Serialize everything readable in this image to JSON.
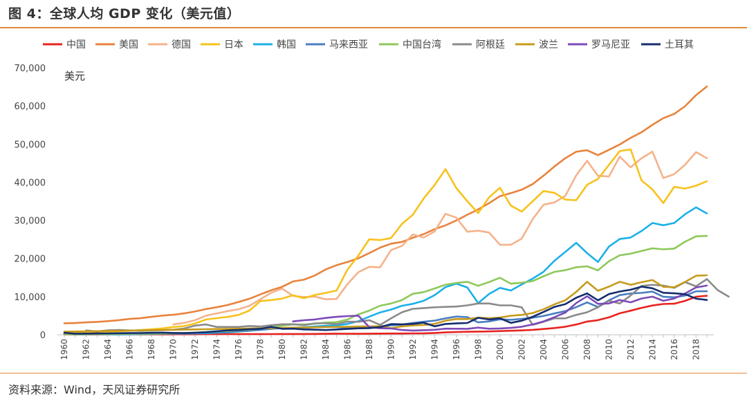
{
  "figure": {
    "title": "图 4：全球人均 GDP 变化（美元值）",
    "source": "资料来源：Wind，天风证券研究所"
  },
  "colors": {
    "accent_rule": "#e08a3c"
  },
  "chart_data": {
    "type": "line",
    "unit_label": "美元",
    "ylim": [
      0,
      70000
    ],
    "yticks": [
      0,
      10000,
      20000,
      30000,
      40000,
      50000,
      60000,
      70000
    ],
    "ytick_labels": [
      "0",
      "10,000",
      "20,000",
      "30,000",
      "40,000",
      "50,000",
      "60,000",
      "70,000"
    ],
    "xlim": [
      1960,
      2019
    ],
    "xticks": [
      1960,
      1962,
      1964,
      1966,
      1968,
      1970,
      1972,
      1974,
      1976,
      1978,
      1980,
      1982,
      1984,
      1986,
      1988,
      1990,
      1992,
      1994,
      1996,
      1998,
      2000,
      2002,
      2004,
      2006,
      2008,
      2010,
      2012,
      2014,
      2016,
      2018
    ],
    "legend_position": "top",
    "grid": false,
    "series": [
      {
        "name": "中国",
        "color": "#e8231f",
        "start": 1960,
        "values": [
          90,
          76,
          70,
          74,
          85,
          98,
          104,
          96,
          91,
          90,
          113,
          119,
          132,
          157,
          160,
          178,
          165,
          185,
          156,
          184,
          195,
          197,
          203,
          225,
          250,
          294,
          281,
          252,
          284,
          308,
          318,
          333,
          366,
          377,
          473,
          610,
          709,
          782,
          829,
          873,
          959,
          1053,
          1149,
          1289,
          1509,
          1753,
          2099,
          2693,
          3468,
          3832,
          4550,
          5618,
          6317,
          7051,
          7679,
          8067,
          8148,
          8879,
          9977,
          10217
        ]
      },
      {
        "name": "美国",
        "color": "#e8823c",
        "start": 1960,
        "values": [
          3007,
          3067,
          3244,
          3375,
          3574,
          3828,
          4146,
          4336,
          4696,
          5032,
          5234,
          5609,
          6094,
          6726,
          7226,
          7801,
          8592,
          9453,
          10565,
          11674,
          12575,
          13976,
          14434,
          15544,
          17121,
          18237,
          19071,
          20039,
          21417,
          22857,
          23889,
          24342,
          25419,
          26387,
          27695,
          28691,
          29968,
          31459,
          32854,
          34515,
          36335,
          37133,
          38023,
          39497,
          41712,
          44115,
          46299,
          47976,
          48383,
          47100,
          48467,
          49883,
          51603,
          53107,
          55033,
          56803,
          57904,
          59928,
          62823,
          65095
        ]
      },
      {
        "name": "德国",
        "color": "#f4b28a",
        "start": 1970,
        "values": [
          2700,
          3100,
          3800,
          5000,
          5600,
          6200,
          6700,
          7600,
          9300,
          11000,
          12100,
          10200,
          9900,
          10000,
          9300,
          9400,
          13300,
          16400,
          17800,
          17700,
          22200,
          23300,
          26300,
          25500,
          27100,
          31700,
          30700,
          27000,
          27300,
          26800,
          23600,
          23600,
          25200,
          30300,
          34100,
          34700,
          36400,
          41800,
          45600,
          41700,
          41500,
          46700,
          43900,
          46300,
          48000,
          41100,
          42100,
          44600,
          47900,
          46300
        ]
      },
      {
        "name": "日本",
        "color": "#f7c21c",
        "start": 1960,
        "values": [
          480,
          560,
          630,
          720,
          840,
          920,
          1060,
          1230,
          1450,
          1670,
          2040,
          2270,
          2950,
          3990,
          4350,
          4670,
          5200,
          6340,
          8820,
          9100,
          9460,
          10360,
          9580,
          10430,
          10980,
          11580,
          17110,
          20750,
          25050,
          24820,
          25360,
          29060,
          31460,
          35770,
          39270,
          43440,
          38440,
          35020,
          31900,
          36030,
          38530,
          33850,
          32290,
          35000,
          37690,
          37220,
          35430,
          35280,
          39340,
          40860,
          44510,
          48170,
          48600,
          40450,
          38110,
          34520,
          38790,
          38330,
          39080,
          40250
        ]
      },
      {
        "name": "韩国",
        "color": "#1bb0e8",
        "start": 1960,
        "values": [
          160,
          95,
          105,
          145,
          125,
          110,
          130,
          160,
          200,
          245,
          280,
          300,
          325,
          410,
          560,
          620,
          830,
          1050,
          1400,
          1780,
          1700,
          1850,
          1950,
          2150,
          2350,
          2450,
          2830,
          3550,
          4750,
          5850,
          6600,
          7600,
          8100,
          8900,
          10400,
          12500,
          13400,
          12400,
          8300,
          10700,
          12300,
          11600,
          13200,
          14700,
          16500,
          19400,
          21700,
          24100,
          21400,
          19100,
          23100,
          25100,
          25500,
          27200,
          29300,
          28700,
          29300,
          31600,
          33400,
          31800
        ]
      },
      {
        "name": "马来西亚",
        "color": "#4a7ec0",
        "start": 1960,
        "values": [
          240,
          250,
          270,
          285,
          295,
          315,
          330,
          320,
          320,
          355,
          360,
          385,
          440,
          650,
          790,
          760,
          900,
          1060,
          1270,
          1530,
          1780,
          1760,
          1820,
          1960,
          2130,
          1990,
          1730,
          1910,
          2040,
          2190,
          2440,
          2650,
          3110,
          3410,
          3700,
          4300,
          4770,
          4600,
          3250,
          3500,
          4040,
          3910,
          4170,
          4460,
          4930,
          5590,
          6210,
          7240,
          8480,
          7290,
          9040,
          10400,
          10820,
          10970,
          11320,
          9960,
          9820,
          10260,
          11380,
          11410
        ]
      },
      {
        "name": "中国台湾",
        "color": "#8dc85a",
        "start": 1960,
        "values": [
          160,
          150,
          170,
          190,
          220,
          230,
          250,
          280,
          310,
          350,
          400,
          450,
          520,
          700,
          930,
          980,
          1160,
          1320,
          1600,
          1950,
          2390,
          2710,
          2680,
          2880,
          3200,
          3300,
          3990,
          5350,
          6330,
          7620,
          8200,
          9090,
          10740,
          11190,
          12140,
          13130,
          13590,
          13900,
          12840,
          13810,
          14940,
          13400,
          13640,
          14070,
          15320,
          16490,
          16930,
          17700,
          17960,
          16880,
          19260,
          20840,
          21260,
          21970,
          22670,
          22400,
          22590,
          24390,
          25800,
          25910
        ]
      },
      {
        "name": "阿根廷",
        "color": "#8a8a8a",
        "start": 1962,
        "values": [
          1150,
          850,
          1170,
          1270,
          1150,
          1040,
          1080,
          1220,
          1320,
          1630,
          2400,
          2700,
          2050,
          2050,
          2050,
          2300,
          2150,
          2500,
          2750,
          2750,
          2500,
          3000,
          3000,
          2800,
          3450,
          3400,
          3800,
          2600,
          4300,
          5900,
          6800,
          7000,
          7200,
          7300,
          7400,
          7700,
          8200,
          8200,
          7700,
          7700,
          7200,
          2600,
          3400,
          4300,
          4300,
          5200,
          5900,
          7200,
          8900,
          8200,
          10300,
          12800,
          13100,
          12900,
          12300,
          13800,
          12700,
          14600,
          11700,
          10000
        ]
      },
      {
        "name": "波兰",
        "color": "#c69a1c",
        "start": 1960,
        "values": [
          800,
          850,
          900,
          950,
          1000,
          1050,
          1100,
          1150,
          1200,
          1250,
          1300,
          1350,
          1400,
          1450,
          1500,
          1550,
          1600,
          1650,
          1700,
          1750,
          1800,
          1850,
          1900,
          1950,
          2000,
          2050,
          2100,
          2150,
          2200,
          2250,
          1730,
          2200,
          2450,
          2550,
          2850,
          3690,
          4130,
          4100,
          4500,
          4360,
          4500,
          4980,
          5200,
          5700,
          6680,
          7980,
          9030,
          11250,
          13900,
          11530,
          12600,
          13890,
          13090,
          13780,
          14340,
          12560,
          12450,
          13860,
          15470,
          15600
        ]
      },
      {
        "name": "罗马尼亚",
        "color": "#7d4ab8",
        "start": 1981,
        "values": [
          3500,
          3800,
          4000,
          4400,
          4700,
          4900,
          5000,
          2000,
          1700,
          1650,
          1250,
          1100,
          1200,
          1300,
          1600,
          1580,
          1560,
          1870,
          1580,
          1650,
          1800,
          2100,
          2700,
          3500,
          4600,
          5800,
          8300,
          10100,
          8100,
          8200,
          9100,
          8500,
          9500,
          10000,
          8900,
          9500,
          10800,
          12400,
          12900
        ]
      },
      {
        "name": "土耳其",
        "color": "#142c6e",
        "start": 1960,
        "values": [
          510,
          280,
          310,
          340,
          370,
          390,
          430,
          460,
          500,
          570,
          480,
          440,
          540,
          670,
          900,
          1150,
          1260,
          1430,
          1560,
          2070,
          1560,
          1600,
          1400,
          1320,
          1230,
          1370,
          1520,
          1690,
          1740,
          2010,
          2790,
          2730,
          2840,
          3150,
          2220,
          2830,
          2980,
          3080,
          4450,
          4010,
          4320,
          3120,
          3680,
          4710,
          5960,
          7300,
          8030,
          9710,
          10850,
          9040,
          10670,
          11340,
          11800,
          12600,
          12180,
          11010,
          10860,
          10640,
          9460,
          9130
        ]
      }
    ]
  }
}
